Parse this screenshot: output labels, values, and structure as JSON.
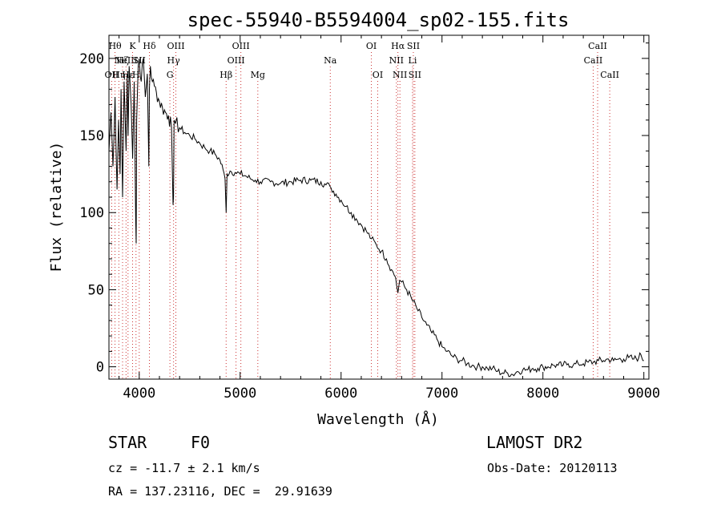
{
  "chart_data": {
    "type": "line",
    "title": "spec-55940-B5594004_sp02-155.fits",
    "xlabel": "Wavelength (Å)",
    "ylabel": "Flux (relative)",
    "xlim": [
      3700,
      9050
    ],
    "ylim": [
      -8,
      215
    ],
    "xticks": [
      4000,
      5000,
      6000,
      7000,
      8000,
      9000
    ],
    "yticks": [
      0,
      50,
      100,
      150,
      200
    ],
    "grid": false,
    "series": [
      {
        "x": [
          3700,
          3720,
          3740,
          3760,
          3780,
          3795,
          3810,
          3820,
          3835,
          3850,
          3870,
          3880,
          3890,
          3900,
          3920,
          3935,
          3950,
          3965,
          3970,
          3975,
          3990,
          4000,
          4020,
          4040,
          4060,
          4080,
          4095,
          4101,
          4110,
          4130,
          4150,
          4170,
          4200,
          4230,
          4260,
          4290,
          4320,
          4335,
          4340,
          4345,
          4360,
          4400,
          4450,
          4500,
          4550,
          4600,
          4650,
          4700,
          4750,
          4800,
          4830,
          4850,
          4861,
          4870,
          4900,
          4950,
          5000,
          5050,
          5100,
          5150,
          5200,
          5300,
          5400,
          5500,
          5600,
          5700,
          5800,
          5850,
          5890,
          5900,
          5950,
          6000,
          6050,
          6100,
          6150,
          6200,
          6250,
          6300,
          6350,
          6400,
          6450,
          6500,
          6540,
          6563,
          6580,
          6600,
          6650,
          6700,
          6750,
          6800,
          6850,
          6900,
          6950,
          7000,
          7050,
          7100,
          7150,
          7200,
          7250,
          7300,
          7350,
          7400,
          7450,
          7500,
          7550,
          7600,
          7650,
          7700,
          7750,
          7800,
          7850,
          7900,
          7950,
          8000,
          8050,
          8100,
          8150,
          8200,
          8250,
          8300,
          8350,
          8400,
          8450,
          8500,
          8550,
          8600,
          8650,
          8700,
          8750,
          8800,
          8850,
          8900,
          8950,
          8970,
          9000
        ],
        "y": [
          140,
          165,
          130,
          175,
          115,
          160,
          125,
          180,
          110,
          185,
          140,
          190,
          150,
          195,
          170,
          135,
          185,
          95,
          80,
          160,
          195,
          200,
          185,
          200,
          175,
          190,
          130,
          180,
          195,
          185,
          182,
          178,
          172,
          168,
          165,
          163,
          155,
          105,
          110,
          160,
          158,
          155,
          152,
          150,
          148,
          145,
          142,
          140,
          138,
          134,
          128,
          122,
          100,
          125,
          127,
          126,
          125,
          124,
          122,
          121,
          120,
          120,
          119,
          120,
          121,
          121,
          120,
          118,
          117,
          116,
          112,
          108,
          104,
          100,
          96,
          92,
          88,
          83,
          79,
          75,
          70,
          63,
          58,
          48,
          56,
          55,
          50,
          44,
          38,
          32,
          27,
          22,
          18,
          13,
          10,
          7,
          5,
          4,
          2,
          1,
          0,
          0,
          -1,
          -1,
          -3,
          -4,
          -4,
          -5,
          -3,
          -2,
          -2,
          -1,
          -1,
          0,
          0,
          1,
          1,
          1,
          2,
          1,
          2,
          2,
          3,
          3,
          4,
          4,
          5,
          4,
          5,
          5,
          6,
          5,
          6,
          8,
          4
        ]
      }
    ],
    "line_markers": [
      {
        "x": 3727,
        "label": "OII",
        "row": 3
      },
      {
        "x": 3760,
        "label": "Hθ",
        "row": 1
      },
      {
        "x": 3798,
        "label": "Hη",
        "row": 3
      },
      {
        "x": 3835,
        "label": "Hζ",
        "row": 2
      },
      {
        "x": 3869,
        "label": "NeIII",
        "row": 2
      },
      {
        "x": 3889,
        "label": "Hε",
        "row": 3
      },
      {
        "x": 3934,
        "label": "K",
        "row": 1
      },
      {
        "x": 3968,
        "label": "H",
        "row": 3
      },
      {
        "x": 4000,
        "label": "SII",
        "row": 2
      },
      {
        "x": 4101,
        "label": "Hδ",
        "row": 1
      },
      {
        "x": 4304,
        "label": "G",
        "row": 3
      },
      {
        "x": 4340,
        "label": "Hγ",
        "row": 2
      },
      {
        "x": 4363,
        "label": "OIII",
        "row": 1
      },
      {
        "x": 4861,
        "label": "Hβ",
        "row": 3
      },
      {
        "x": 4959,
        "label": "OIII",
        "row": 2
      },
      {
        "x": 5007,
        "label": "OIII",
        "row": 1
      },
      {
        "x": 5175,
        "label": "Mg",
        "row": 3
      },
      {
        "x": 5893,
        "label": "Na",
        "row": 2
      },
      {
        "x": 6300,
        "label": "OI",
        "row": 1
      },
      {
        "x": 6363,
        "label": "OI",
        "row": 3
      },
      {
        "x": 6548,
        "label": "NII",
        "row": 2
      },
      {
        "x": 6563,
        "label": "Hα",
        "row": 1
      },
      {
        "x": 6583,
        "label": "NII",
        "row": 3
      },
      {
        "x": 6708,
        "label": "Li",
        "row": 2
      },
      {
        "x": 6716,
        "label": "SII",
        "row": 1
      },
      {
        "x": 6731,
        "label": "SII",
        "row": 3
      },
      {
        "x": 8498,
        "label": "CaII",
        "row": 2
      },
      {
        "x": 8542,
        "label": "CaII",
        "row": 1
      },
      {
        "x": 8662,
        "label": "CaII",
        "row": 3
      }
    ]
  },
  "info": {
    "class_label": "STAR",
    "subclass": "F0",
    "survey": "LAMOST DR2",
    "redshift_line": "cz = -11.7 ± 2.1 km/s",
    "obs_date": "Obs-Date: 20120113",
    "coords": "RA = 137.23116, DEC =  29.91639"
  },
  "colors": {
    "spectrum": "#000000",
    "marker_line": "#cc3333",
    "background": "#ffffff"
  }
}
